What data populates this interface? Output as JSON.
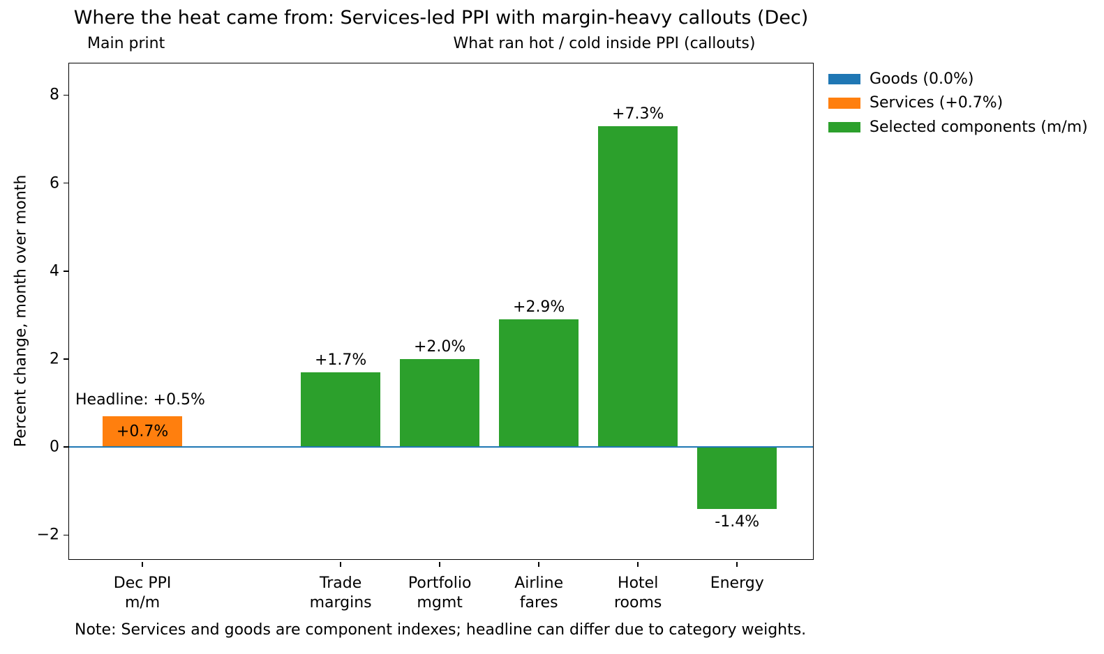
{
  "chart_data": {
    "type": "bar",
    "title": "Where the heat came from: Services-led PPI with margin-heavy callouts (Dec)",
    "subtitle_left": "Main print",
    "subtitle_right": "What ran hot / cold inside PPI (callouts)",
    "ylabel": "Percent change, month over month",
    "xlabel": "",
    "note": "Note: Services and goods are component indexes; headline can differ due to category weights.",
    "annotation": {
      "text": "Headline: +0.5%"
    },
    "grid": false,
    "ylim": [
      -2.58,
      8.72
    ],
    "xlim": [
      -0.74,
      6.78
    ],
    "bar_width": 0.8,
    "yticks": [
      {
        "value": 8,
        "label": "8"
      },
      {
        "value": 6,
        "label": "6"
      },
      {
        "value": 4,
        "label": "4"
      },
      {
        "value": 2,
        "label": "2"
      },
      {
        "value": 0,
        "label": "0"
      },
      {
        "value": -2,
        "label": "−2"
      }
    ],
    "zero_line": {
      "value": 0,
      "color": "#1f77b4"
    },
    "bars": [
      {
        "name": "dec-ppi-mm",
        "x": 0,
        "value": 0.7,
        "value_label": "+0.7%",
        "color": "#ff7f0e",
        "category_lines": [
          "Dec PPI",
          "m/m"
        ],
        "label_placement": "inside",
        "series": "Services"
      },
      {
        "name": "trade-margins",
        "x": 2,
        "value": 1.7,
        "value_label": "+1.7%",
        "color": "#2ca02c",
        "category_lines": [
          "Trade",
          "margins"
        ],
        "label_placement": "above",
        "series": "Selected components"
      },
      {
        "name": "portfolio-mgmt",
        "x": 3,
        "value": 2.0,
        "value_label": "+2.0%",
        "color": "#2ca02c",
        "category_lines": [
          "Portfolio",
          "mgmt"
        ],
        "label_placement": "above",
        "series": "Selected components"
      },
      {
        "name": "airline-fares",
        "x": 4,
        "value": 2.9,
        "value_label": "+2.9%",
        "color": "#2ca02c",
        "category_lines": [
          "Airline",
          "fares"
        ],
        "label_placement": "above",
        "series": "Selected components"
      },
      {
        "name": "hotel-rooms",
        "x": 5,
        "value": 7.3,
        "value_label": "+7.3%",
        "color": "#2ca02c",
        "category_lines": [
          "Hotel",
          "rooms"
        ],
        "label_placement": "above",
        "series": "Selected components"
      },
      {
        "name": "energy",
        "x": 6,
        "value": -1.4,
        "value_label": "-1.4%",
        "color": "#2ca02c",
        "category_lines": [
          "Energy"
        ],
        "label_placement": "below",
        "series": "Selected components"
      }
    ],
    "legend": {
      "position": "outside-upper-right",
      "items": [
        {
          "name": "goods",
          "label": "Goods (0.0%)",
          "color": "#1f77b4"
        },
        {
          "name": "services",
          "label": "Services (+0.7%)",
          "color": "#ff7f0e"
        },
        {
          "name": "selected-components",
          "label": "Selected components (m/m)",
          "color": "#2ca02c"
        }
      ]
    }
  },
  "colors": {
    "background": "#ffffff",
    "text": "#000000",
    "axis": "#000000",
    "goods_blue": "#1f77b4",
    "services_orange": "#ff7f0e",
    "components_green": "#2ca02c",
    "zero_line_blue": "#1f77b4"
  }
}
